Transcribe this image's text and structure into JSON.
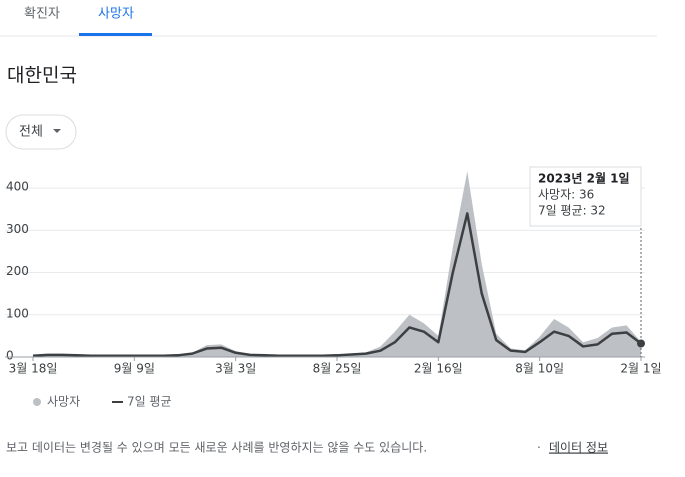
{
  "tabs": [
    "확진자",
    "사망자"
  ],
  "title": "대한민국",
  "dropdown": "전체",
  "chart_data": {
    "type": "line",
    "x": [
      0,
      25,
      50,
      75,
      100,
      125,
      150,
      175,
      200,
      225,
      250,
      275,
      300,
      325,
      350,
      375,
      400,
      425,
      450,
      475,
      500,
      525,
      550,
      575,
      600,
      625,
      650,
      675,
      700,
      725,
      750,
      775,
      800,
      825,
      850,
      875,
      900,
      925,
      950,
      975,
      1000,
      1025,
      1050
    ],
    "series": [
      {
        "name": "사망자",
        "type": "area",
        "color": "#bdc1c6",
        "values": [
          4,
          6,
          6,
          5,
          4,
          4,
          4,
          4,
          4,
          4,
          5,
          10,
          28,
          30,
          14,
          7,
          5,
          4,
          4,
          4,
          4,
          5,
          8,
          11,
          25,
          60,
          100,
          80,
          50,
          260,
          440,
          220,
          55,
          20,
          16,
          48,
          90,
          70,
          35,
          45,
          70,
          75,
          36
        ]
      },
      {
        "name": "7일 평균",
        "type": "line",
        "color": "#3c4043",
        "values": [
          3,
          5,
          5,
          4,
          3,
          3,
          3,
          3,
          3,
          3,
          4,
          8,
          20,
          22,
          10,
          5,
          4,
          3,
          3,
          3,
          3,
          4,
          6,
          8,
          15,
          35,
          70,
          60,
          35,
          200,
          340,
          150,
          40,
          15,
          12,
          35,
          60,
          50,
          25,
          30,
          55,
          58,
          32
        ]
      }
    ],
    "xlim": [
      0,
      1050
    ],
    "xticks": [
      {
        "value": 0,
        "label": "3월 18일"
      },
      {
        "value": 175,
        "label": "9월 9일"
      },
      {
        "value": 350,
        "label": "3월 3일"
      },
      {
        "value": 525,
        "label": "8월 25일"
      },
      {
        "value": 700,
        "label": "2월 16일"
      },
      {
        "value": 875,
        "label": "8월 10일"
      },
      {
        "value": 1050,
        "label": "2월 1일"
      }
    ],
    "ylim": [
      0,
      450
    ],
    "yticks": [
      0,
      100,
      200,
      300,
      400
    ],
    "grid": true,
    "tooltip": [
      "2023년 2월 1일",
      "사망자: 36",
      "7일 평균: 32"
    ]
  },
  "footer": {
    "text": "보고 데이터는 변경될 수 있으며 모든 새로운 사례를 반영하지는 않을 수도 있습니다.",
    "separator": "·",
    "link": "데이터 정보"
  }
}
